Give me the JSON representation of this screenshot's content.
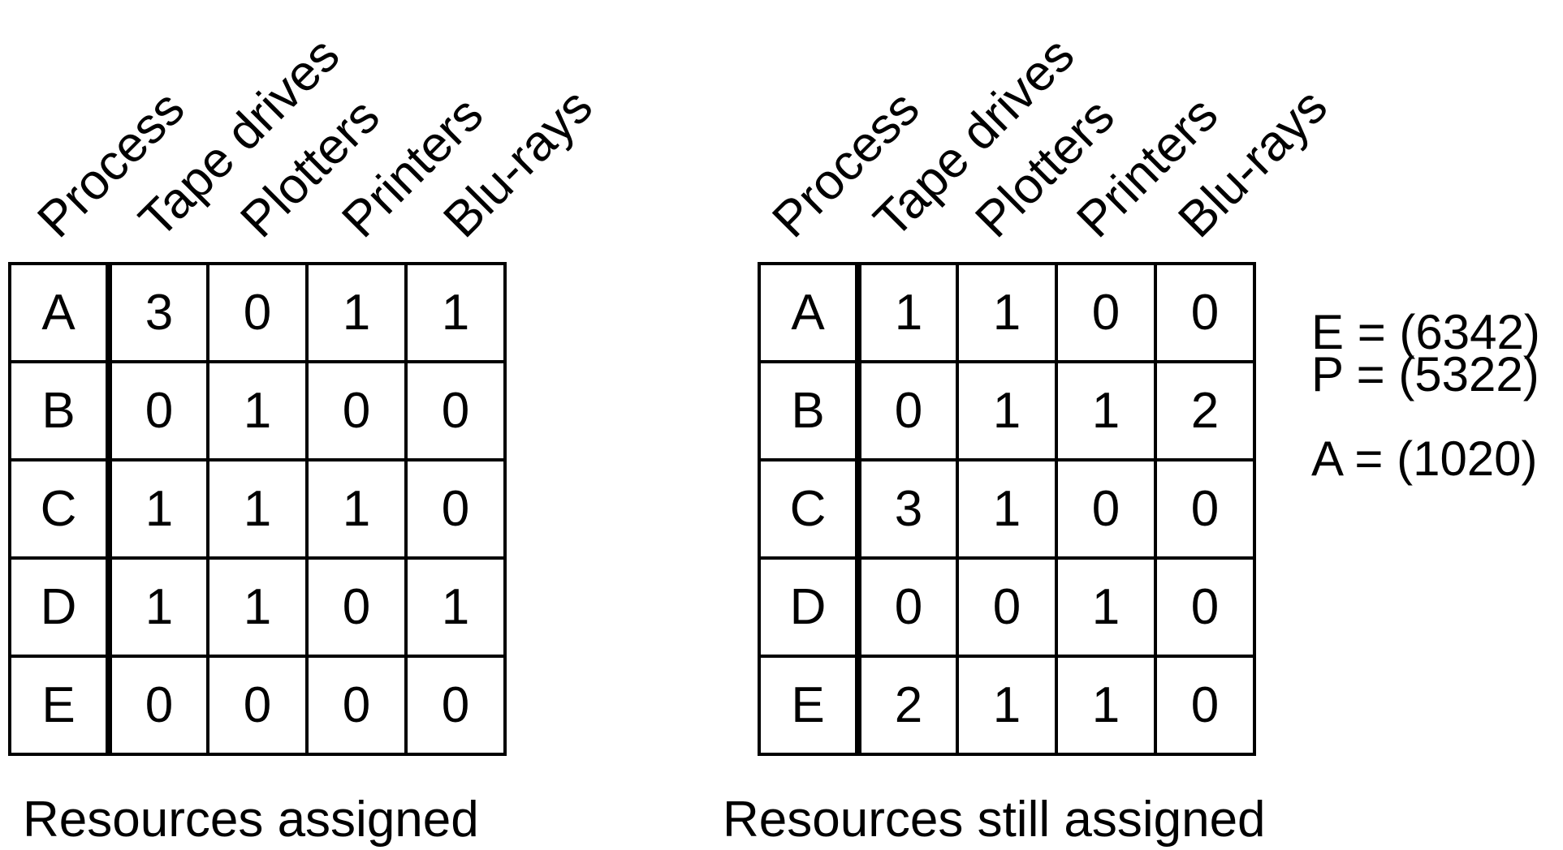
{
  "headers": [
    "Process",
    "Tape drives",
    "Plotters",
    "Printers",
    "Blu-rays"
  ],
  "left_table": {
    "caption": "Resources assigned",
    "rows": [
      {
        "process": "A",
        "values": [
          "3",
          "0",
          "1",
          "1"
        ]
      },
      {
        "process": "B",
        "values": [
          "0",
          "1",
          "0",
          "0"
        ]
      },
      {
        "process": "C",
        "values": [
          "1",
          "1",
          "1",
          "0"
        ]
      },
      {
        "process": "D",
        "values": [
          "1",
          "1",
          "0",
          "1"
        ]
      },
      {
        "process": "E",
        "values": [
          "0",
          "0",
          "0",
          "0"
        ]
      }
    ]
  },
  "right_table": {
    "caption": "Resources still assigned",
    "rows": [
      {
        "process": "A",
        "values": [
          "1",
          "1",
          "0",
          "0"
        ]
      },
      {
        "process": "B",
        "values": [
          "0",
          "1",
          "1",
          "2"
        ]
      },
      {
        "process": "C",
        "values": [
          "3",
          "1",
          "0",
          "0"
        ]
      },
      {
        "process": "D",
        "values": [
          "0",
          "0",
          "1",
          "0"
        ]
      },
      {
        "process": "E",
        "values": [
          "2",
          "1",
          "1",
          "0"
        ]
      }
    ]
  },
  "vectors": {
    "e": "E = (6342)",
    "p": "P = (5322)",
    "a": "A = (1020)"
  }
}
